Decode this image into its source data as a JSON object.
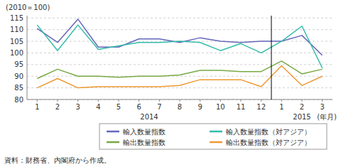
{
  "chart_data": {
    "type": "line",
    "y_label": "(2010＝100)",
    "x_label": "(年月)",
    "note": "資料：財務省、内閣府から作成。",
    "annotations": [
      "2014",
      "2015"
    ],
    "divider": 12.5,
    "categories": [
      "1",
      "2",
      "3",
      "4",
      "5",
      "6",
      "7",
      "8",
      "9",
      "10",
      "11",
      "12",
      "1",
      "2",
      "3"
    ],
    "series": [
      {
        "name": "輸入数量指数",
        "color": "#6666bb",
        "values": [
          110.5,
          104.5,
          114.5,
          102.5,
          102.5,
          106.0,
          106.0,
          104.5,
          106.5,
          105.0,
          104.5,
          105.0,
          105.0,
          107.5,
          99.0
        ]
      },
      {
        "name": "輸入数量指数（対アジア）",
        "color": "#33bbaa",
        "values": [
          112.0,
          101.0,
          112.0,
          101.5,
          103.0,
          104.5,
          104.5,
          105.0,
          104.5,
          101.0,
          104.0,
          100.0,
          105.0,
          111.5,
          93.5
        ]
      },
      {
        "name": "輸出数量指数",
        "color": "#77aa44",
        "values": [
          89.0,
          93.0,
          90.0,
          90.0,
          89.5,
          90.0,
          90.0,
          90.5,
          92.5,
          92.5,
          92.0,
          92.0,
          96.5,
          91.0,
          93.0
        ]
      },
      {
        "name": "輸出数量指数（対アジア）",
        "color": "#ee9933",
        "values": [
          85.0,
          89.0,
          85.0,
          85.5,
          85.5,
          85.5,
          85.5,
          86.0,
          88.5,
          88.5,
          88.5,
          85.5,
          94.5,
          86.0,
          90.0
        ]
      }
    ],
    "ylim": [
      80,
      116
    ],
    "yticks": [
      80,
      85,
      90,
      95,
      100,
      105,
      110,
      115
    ],
    "grid": true,
    "legend": "bottom"
  }
}
